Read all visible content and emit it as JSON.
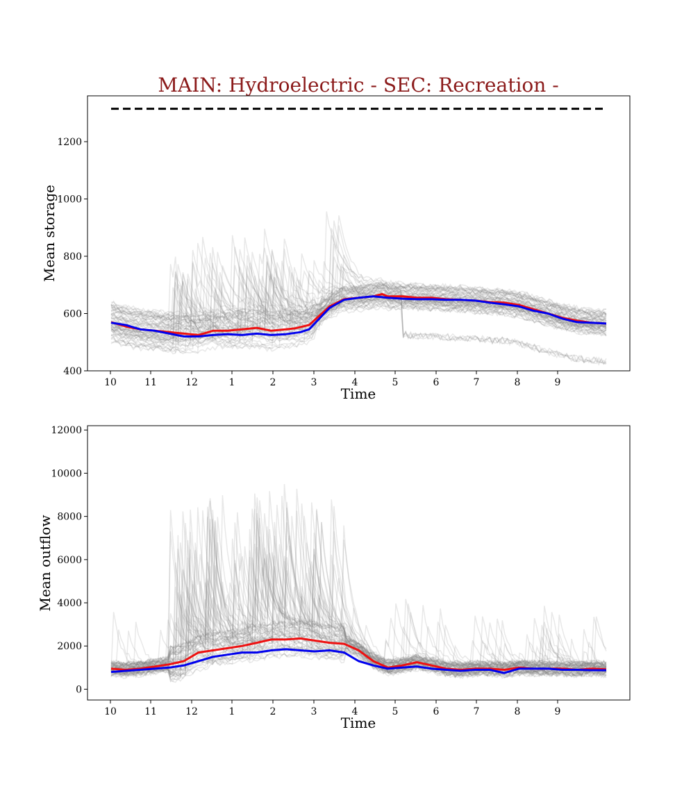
{
  "chart_data": [
    {
      "type": "line",
      "title": "MAIN: Hydroelectric - SEC: Recreation -",
      "xlabel": "Time",
      "ylabel": "Mean storage",
      "x_tick_labels": [
        "10",
        "11",
        "12",
        "1",
        "2",
        "3",
        "4",
        "5",
        "6",
        "7",
        "8",
        "9"
      ],
      "yticks": [
        400,
        600,
        800,
        1000,
        1200
      ],
      "ylim": [
        400,
        1360
      ],
      "reference_line": {
        "value": 1315,
        "color": "#000000",
        "style": "dashed"
      },
      "ensemble": {
        "color": "#808080",
        "count": 60
      },
      "series": [
        {
          "color": "#ee1111",
          "points": [
            [
              0,
              570
            ],
            [
              0.5,
              555
            ],
            [
              1,
              545
            ],
            [
              1.5,
              540
            ],
            [
              2,
              535
            ],
            [
              2.5,
              530
            ],
            [
              3,
              525
            ],
            [
              3.5,
              540
            ],
            [
              4,
              540
            ],
            [
              4.5,
              545
            ],
            [
              5,
              550
            ],
            [
              5.5,
              540
            ],
            [
              6,
              545
            ],
            [
              6.3,
              548
            ],
            [
              6.8,
              560
            ],
            [
              7.5,
              625
            ],
            [
              8,
              650
            ],
            [
              8.5,
              655
            ],
            [
              9,
              660
            ],
            [
              9.3,
              668
            ],
            [
              9.5,
              660
            ],
            [
              10,
              660
            ],
            [
              10.5,
              655
            ],
            [
              11,
              655
            ],
            [
              11.5,
              650
            ],
            [
              12,
              648
            ],
            [
              12.5,
              645
            ],
            [
              13,
              640
            ],
            [
              13.5,
              638
            ],
            [
              14,
              630
            ],
            [
              14.5,
              615
            ],
            [
              15,
              600
            ],
            [
              15.5,
              585
            ],
            [
              16,
              575
            ],
            [
              16.5,
              568
            ],
            [
              17,
              565
            ]
          ]
        },
        {
          "color": "#0000ee",
          "points": [
            [
              0,
              568
            ],
            [
              0.5,
              560
            ],
            [
              1,
              545
            ],
            [
              1.5,
              540
            ],
            [
              2,
              530
            ],
            [
              2.5,
              520
            ],
            [
              3,
              520
            ],
            [
              3.5,
              525
            ],
            [
              4,
              528
            ],
            [
              4.5,
              525
            ],
            [
              5,
              530
            ],
            [
              5.5,
              525
            ],
            [
              6,
              528
            ],
            [
              6.5,
              535
            ],
            [
              6.8,
              545
            ],
            [
              7.5,
              620
            ],
            [
              8,
              648
            ],
            [
              8.5,
              655
            ],
            [
              9,
              660
            ],
            [
              9.5,
              655
            ],
            [
              10,
              652
            ],
            [
              10.5,
              650
            ],
            [
              11,
              650
            ],
            [
              11.5,
              648
            ],
            [
              12,
              648
            ],
            [
              12.5,
              645
            ],
            [
              13,
              638
            ],
            [
              13.5,
              632
            ],
            [
              14,
              625
            ],
            [
              14.5,
              610
            ],
            [
              15,
              600
            ],
            [
              15.5,
              582
            ],
            [
              16,
              570
            ],
            [
              16.5,
              568
            ],
            [
              17,
              565
            ]
          ]
        }
      ]
    },
    {
      "type": "line",
      "title": "",
      "xlabel": "Time",
      "ylabel": "Mean outflow",
      "x_tick_labels": [
        "10",
        "11",
        "12",
        "1",
        "2",
        "3",
        "4",
        "5",
        "6",
        "7",
        "8",
        "9"
      ],
      "yticks": [
        0,
        2000,
        4000,
        6000,
        8000,
        10000,
        12000
      ],
      "ylim": [
        -500,
        12200
      ],
      "ensemble": {
        "color": "#808080",
        "count": 60
      },
      "series": [
        {
          "color": "#ee1111",
          "points": [
            [
              0,
              950
            ],
            [
              0.5,
              900
            ],
            [
              1,
              950
            ],
            [
              1.5,
              1050
            ],
            [
              2,
              1150
            ],
            [
              2.5,
              1300
            ],
            [
              3,
              1700
            ],
            [
              3.5,
              1800
            ],
            [
              4,
              1900
            ],
            [
              4.5,
              2000
            ],
            [
              5,
              2150
            ],
            [
              5.5,
              2300
            ],
            [
              6,
              2300
            ],
            [
              6.5,
              2350
            ],
            [
              7,
              2250
            ],
            [
              7.5,
              2150
            ],
            [
              8,
              2100
            ],
            [
              8.5,
              1800
            ],
            [
              9,
              1300
            ],
            [
              9.5,
              1000
            ],
            [
              10,
              1100
            ],
            [
              10.5,
              1250
            ],
            [
              11,
              1100
            ],
            [
              11.5,
              950
            ],
            [
              12,
              900
            ],
            [
              12.5,
              950
            ],
            [
              13,
              950
            ],
            [
              13.5,
              900
            ],
            [
              14,
              1000
            ],
            [
              14.5,
              950
            ],
            [
              15,
              950
            ],
            [
              15.5,
              950
            ],
            [
              16,
              900
            ],
            [
              16.5,
              950
            ],
            [
              17,
              920
            ]
          ]
        },
        {
          "color": "#0000ee",
          "points": [
            [
              0,
              800
            ],
            [
              0.5,
              850
            ],
            [
              1,
              900
            ],
            [
              1.5,
              950
            ],
            [
              2,
              1000
            ],
            [
              2.5,
              1100
            ],
            [
              3,
              1300
            ],
            [
              3.5,
              1500
            ],
            [
              4,
              1600
            ],
            [
              4.5,
              1700
            ],
            [
              5,
              1700
            ],
            [
              5.5,
              1800
            ],
            [
              6,
              1850
            ],
            [
              6.5,
              1800
            ],
            [
              7,
              1750
            ],
            [
              7.5,
              1800
            ],
            [
              8,
              1700
            ],
            [
              8.5,
              1300
            ],
            [
              9,
              1100
            ],
            [
              9.5,
              950
            ],
            [
              10,
              1000
            ],
            [
              10.5,
              1050
            ],
            [
              11,
              950
            ],
            [
              11.5,
              900
            ],
            [
              12,
              850
            ],
            [
              12.5,
              900
            ],
            [
              13,
              900
            ],
            [
              13.5,
              750
            ],
            [
              14,
              950
            ],
            [
              14.5,
              950
            ],
            [
              15,
              950
            ],
            [
              15.5,
              900
            ],
            [
              16,
              900
            ],
            [
              16.5,
              880
            ],
            [
              17,
              880
            ]
          ]
        }
      ]
    }
  ]
}
